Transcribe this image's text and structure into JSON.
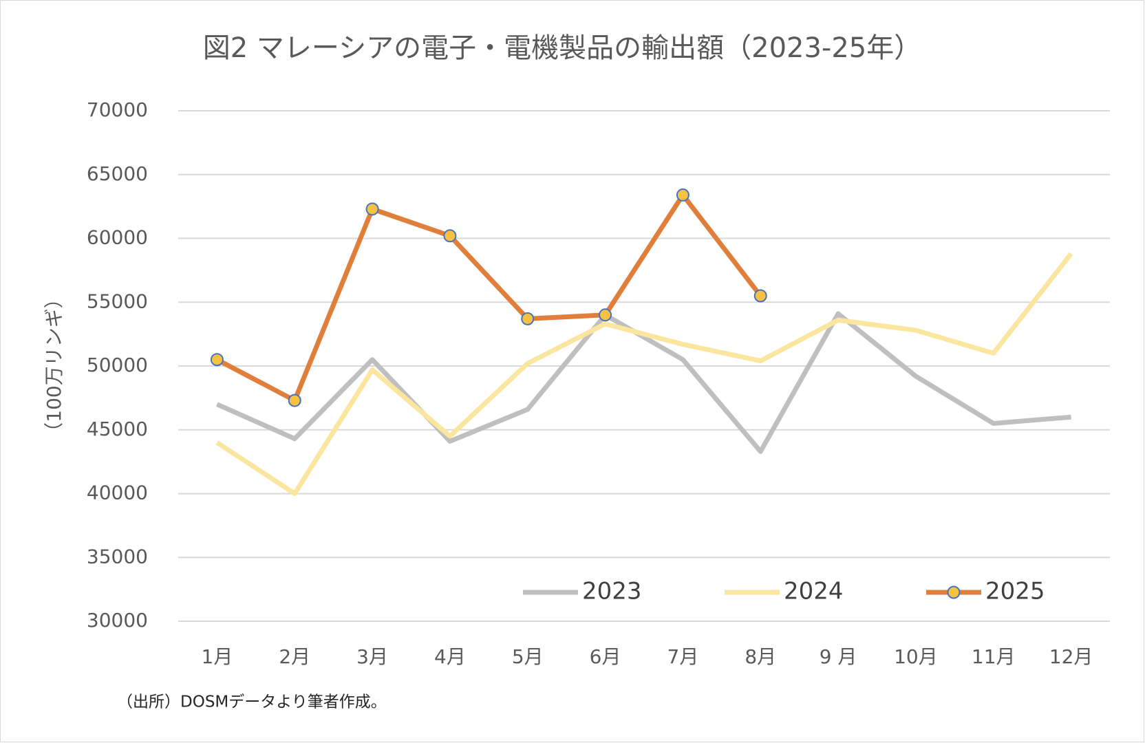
{
  "chart_data": {
    "type": "line",
    "title": "図2 マレーシアの電子・電機製品の輸出額（2023-25年）",
    "y_label": "（100万リンギ）",
    "note": "（出所）DOSMデータより筆者作成。",
    "categories": [
      "1月",
      "2月",
      "3月",
      "4月",
      "5月",
      "6月",
      "7月",
      "8月",
      "9 月",
      "10月",
      "11月",
      "12月"
    ],
    "series": [
      {
        "name": "2023",
        "color": "#bfbfbf",
        "values": [
          47000,
          44300,
          50500,
          44100,
          46600,
          54000,
          50500,
          43300,
          54100,
          49200,
          45500,
          46000
        ]
      },
      {
        "name": "2024",
        "color": "#fbe6a0",
        "values": [
          44000,
          40000,
          49700,
          44500,
          50200,
          53300,
          51700,
          50400,
          53600,
          52800,
          51000,
          58800
        ]
      },
      {
        "name": "2025",
        "color": "#e07f3b",
        "marker_color": "#f5c242",
        "marker_edge": "#4472c4",
        "values": [
          50500,
          47300,
          62300,
          60200,
          53700,
          54000,
          63400,
          55500,
          null,
          null,
          null,
          null
        ]
      }
    ],
    "ylim": [
      30000,
      70000
    ],
    "yticks": [
      30000,
      35000,
      40000,
      45000,
      50000,
      55000,
      60000,
      65000,
      70000
    ],
    "grid": true,
    "legend": "bottom"
  }
}
